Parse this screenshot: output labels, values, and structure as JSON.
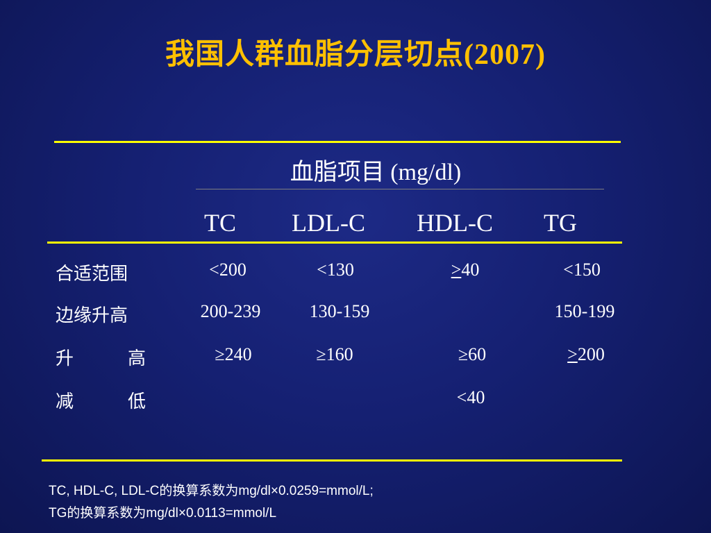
{
  "title": "我国人群血脂分层切点(2007)",
  "table": {
    "group_header": "血脂项目 (mg/dl)",
    "columns": [
      "TC",
      "LDL-C",
      "HDL-C",
      "TG"
    ],
    "rows": [
      {
        "label": "合适范围",
        "tc": "<200",
        "ldl": "<130",
        "hdl_prefix": ">",
        "hdl": "40",
        "tg": "<150"
      },
      {
        "label": "边缘升高",
        "tc": "200-239",
        "ldl": "130-159",
        "hdl": "",
        "tg": "150-199"
      },
      {
        "label_a": "升",
        "label_b": "高",
        "tc": "≥240",
        "ldl": "≥160",
        "hdl": "≥60",
        "tg_prefix": ">",
        "tg": "200"
      },
      {
        "label_a": "减",
        "label_b": "低",
        "tc": "",
        "ldl": "",
        "hdl": "<40",
        "tg": ""
      }
    ]
  },
  "footnote": {
    "line1": "TC, HDL-C, LDL-C的换算系数为mg/dl×0.0259=mmol/L;",
    "line2": "TG的换算系数为mg/dl×0.0113=mmol/L"
  },
  "colors": {
    "title": "#ffc000",
    "rule": "#ffff00",
    "background": "#152072",
    "text": "#ffffff"
  }
}
